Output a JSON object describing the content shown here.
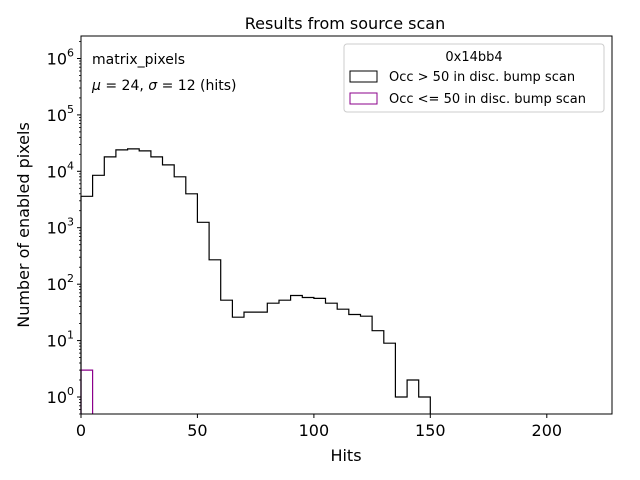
{
  "chart_data": {
    "type": "histogram",
    "title": "Results from source scan",
    "xlabel": "Hits",
    "ylabel": "Number of enabled pixels",
    "xscale": "linear",
    "yscale": "log",
    "xlim": [
      0,
      228
    ],
    "ylim": [
      0.5,
      2500000
    ],
    "bin_width": 5,
    "x_ticks": [
      0,
      50,
      100,
      150,
      200
    ],
    "x_tick_labels": [
      "0",
      "50",
      "100",
      "150",
      "200"
    ],
    "y_ticks": [
      1,
      10,
      100,
      1000,
      10000,
      100000,
      1000000
    ],
    "y_tick_labels": [
      {
        "base": "10",
        "exp": "0"
      },
      {
        "base": "10",
        "exp": "1"
      },
      {
        "base": "10",
        "exp": "2"
      },
      {
        "base": "10",
        "exp": "3"
      },
      {
        "base": "10",
        "exp": "4"
      },
      {
        "base": "10",
        "exp": "5"
      },
      {
        "base": "10",
        "exp": "6"
      }
    ],
    "annotations": {
      "name": "matrix_pixels",
      "stats_mu_symbol": "μ",
      "stats_mu_value": " = 24, ",
      "stats_sigma_symbol": "σ",
      "stats_sigma_value": " = 12 (hits)"
    },
    "legend": {
      "title": "0x14bb4",
      "location": "top-right",
      "entries": [
        "Occ > 50 in disc. bump scan",
        "Occ <= 50 in disc. bump scan"
      ]
    },
    "series": [
      {
        "name": "Occ > 50 in disc. bump scan",
        "color": "#000000",
        "bin_edges": [
          0,
          5,
          10,
          15,
          20,
          25,
          30,
          35,
          40,
          45,
          50,
          55,
          60,
          65,
          70,
          75,
          80,
          85,
          90,
          95,
          100,
          105,
          110,
          115,
          120,
          125,
          130,
          135,
          140,
          145,
          150
        ],
        "counts": [
          3600,
          8500,
          18000,
          24000,
          25000,
          23000,
          18000,
          13000,
          8000,
          4000,
          1250,
          270,
          52,
          26,
          32,
          32,
          46,
          52,
          63,
          58,
          56,
          46,
          36,
          29,
          27,
          15,
          9,
          1,
          2,
          1
        ]
      },
      {
        "name": "Occ <= 50 in disc. bump scan",
        "color": "#8b008b",
        "bin_edges": [
          0,
          5
        ],
        "counts": [
          3
        ]
      }
    ]
  }
}
